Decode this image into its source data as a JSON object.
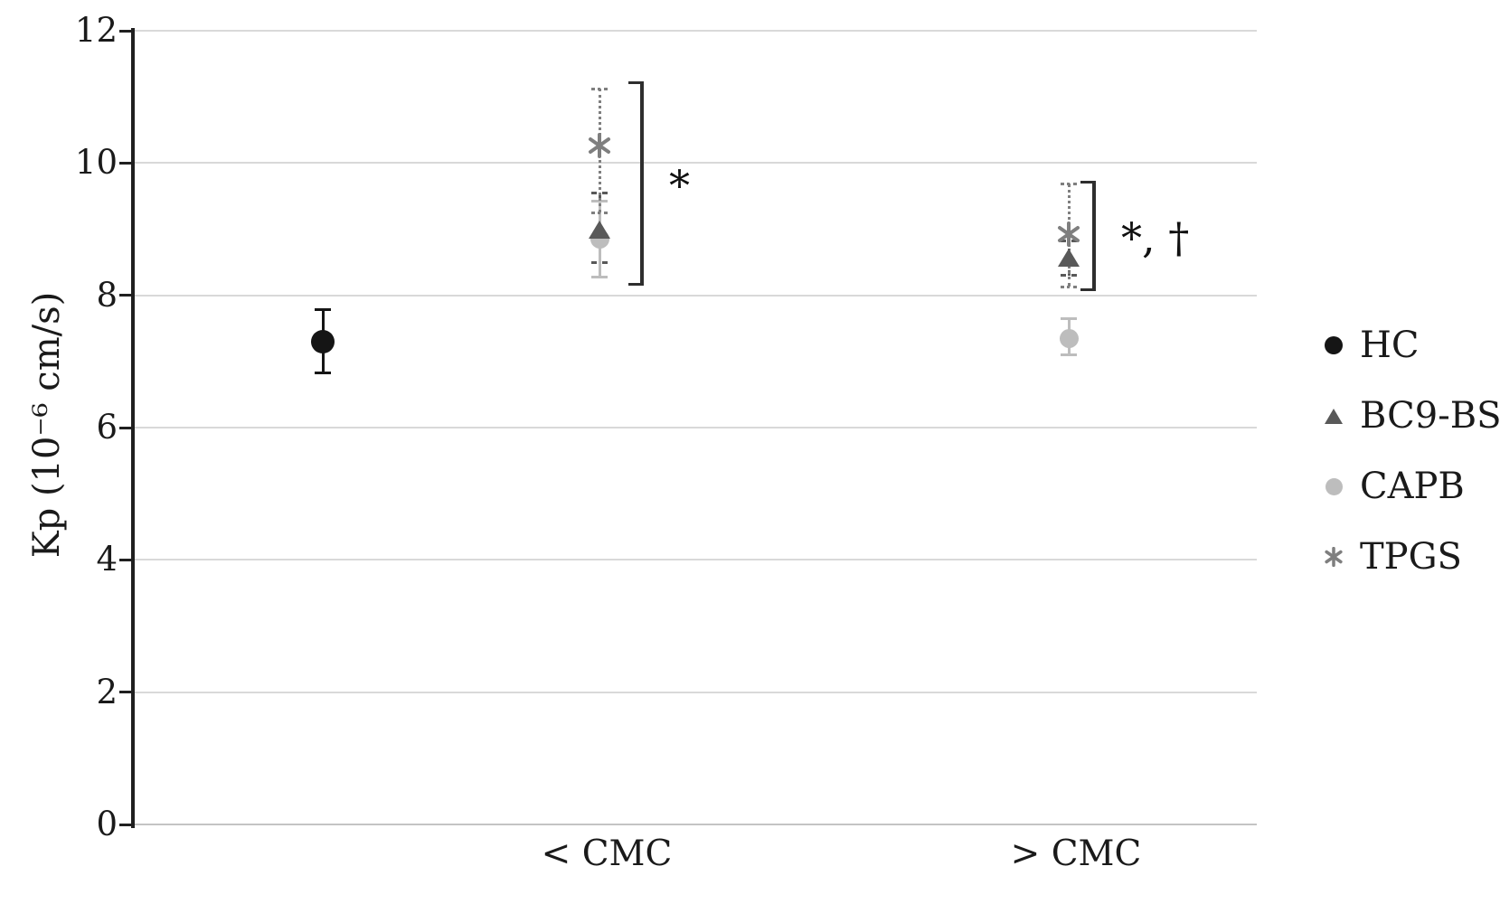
{
  "chart_data": {
    "type": "scatter",
    "title": "",
    "xlabel": "",
    "ylabel": "Kp (10⁻⁶ cm/s)",
    "ylim": [
      0,
      12
    ],
    "yticks": [
      0,
      2,
      4,
      6,
      8,
      10,
      12
    ],
    "grid": true,
    "legend_position": "right",
    "categories": [
      "",
      "< CMC",
      "> CMC"
    ],
    "series": [
      {
        "name": "HC",
        "marker": "circle",
        "color": "#151515",
        "error_style": "solid",
        "points": [
          {
            "group": 0,
            "y": 7.3,
            "y_err_low": 6.83,
            "y_err_high": 7.78
          }
        ]
      },
      {
        "name": "BC9-BS",
        "marker": "triangle",
        "color": "#595959",
        "error_style": "dashed",
        "points": [
          {
            "group": 1,
            "y": 9.0,
            "y_err_low": 8.5,
            "y_err_high": 9.55
          },
          {
            "group": 2,
            "y": 8.57,
            "y_err_low": 8.3,
            "y_err_high": 8.82
          }
        ]
      },
      {
        "name": "CAPB",
        "marker": "circle",
        "color": "#bdbdbd",
        "error_style": "solid",
        "points": [
          {
            "group": 1,
            "y": 8.85,
            "y_err_low": 8.28,
            "y_err_high": 9.42
          },
          {
            "group": 2,
            "y": 7.34,
            "y_err_low": 7.1,
            "y_err_high": 7.65
          }
        ]
      },
      {
        "name": "TPGS",
        "marker": "asterisk",
        "color": "#7f7f7f",
        "error_style": "dotted",
        "points": [
          {
            "group": 1,
            "y": 10.27,
            "y_err_low": 9.25,
            "y_err_high": 11.12
          },
          {
            "group": 2,
            "y": 8.93,
            "y_err_low": 8.13,
            "y_err_high": 9.69
          }
        ]
      }
    ],
    "annotations": [
      {
        "group": 1,
        "label": "*",
        "bracket_top": 11.23,
        "bracket_bottom": 8.15
      },
      {
        "group": 2,
        "label": "*, †",
        "bracket_top": 9.73,
        "bracket_bottom": 8.07
      }
    ],
    "colors": {
      "gridline": "#d9d9d9",
      "zero_line": "#c4c4c4",
      "axis": "#1f1f1f",
      "text": "#1a1a1a",
      "bracket": "#2e2e2e"
    }
  }
}
